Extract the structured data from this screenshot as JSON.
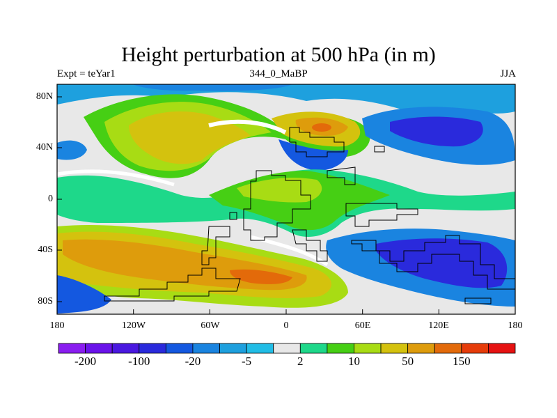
{
  "title": "Height perturbation at 500 hPa (in m)",
  "subtitle_left": "Expt = teYar1",
  "subtitle_center": "344_0_MaBP",
  "subtitle_right": "JJA",
  "axes": {
    "lon_ticks": [
      "180",
      "120W",
      "60W",
      "0",
      "60E",
      "120E",
      "180"
    ],
    "lat_ticks": [
      "80N",
      "40N",
      "0",
      "40S",
      "80S"
    ]
  },
  "colorbar": {
    "colors": [
      "#8a1df0",
      "#6a13ea",
      "#4a18e0",
      "#2a2adc",
      "#1458e0",
      "#1a84e0",
      "#1ea0de",
      "#21bde6",
      "#e8e8e8",
      "#1ed88a",
      "#46cf14",
      "#a8dc14",
      "#d4c20e",
      "#de9c0c",
      "#e36a0a",
      "#e63c0a",
      "#e61212"
    ],
    "labels": [
      "-200",
      "-100",
      "-20",
      "-5",
      "2",
      "10",
      "50",
      "150"
    ]
  },
  "colors": {
    "neutral": "#e8e8e8",
    "coast": "#000000"
  }
}
